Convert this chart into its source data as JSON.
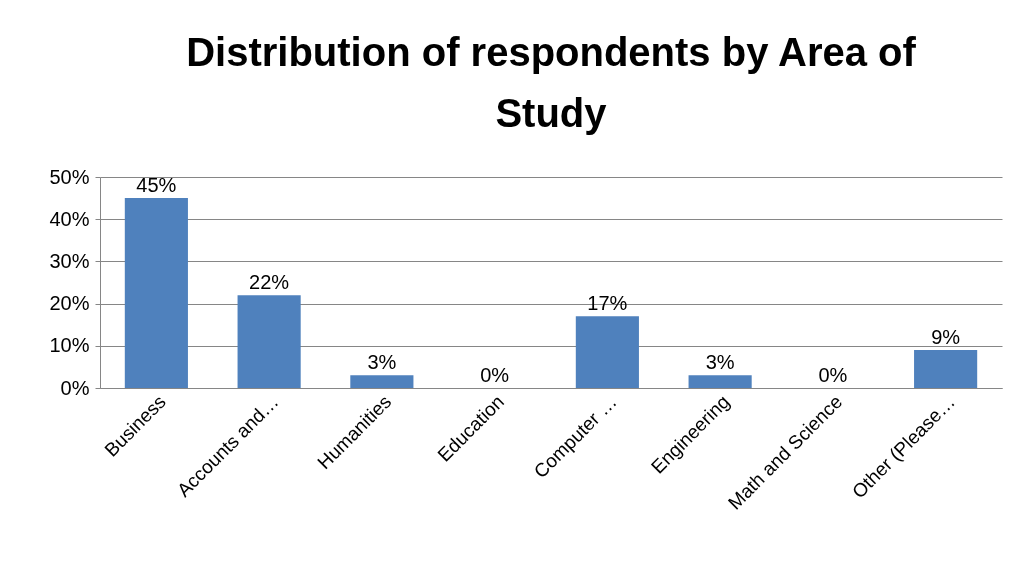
{
  "chart_data": {
    "type": "bar",
    "title": "Distribution of respondents by Area of Study",
    "categories": [
      "Business",
      "Accounts and…",
      "Humanities",
      "Education",
      "Computer …",
      "Engineering",
      "Math and Science",
      "Other (Please…"
    ],
    "values": [
      45,
      22,
      3,
      0,
      17,
      3,
      0,
      9
    ],
    "value_labels": [
      "45%",
      "22%",
      "3%",
      "0%",
      "17%",
      "3%",
      "0%",
      "9%"
    ],
    "color": "#4f81bd",
    "ylim": [
      0,
      50
    ],
    "yticks": [
      {
        "value": 0,
        "label": "0%"
      },
      {
        "value": 10,
        "label": "10%"
      },
      {
        "value": 20,
        "label": "20%"
      },
      {
        "value": 30,
        "label": "30%"
      },
      {
        "value": 40,
        "label": "40%"
      },
      {
        "value": 50,
        "label": "50%"
      }
    ],
    "grid": "y"
  }
}
